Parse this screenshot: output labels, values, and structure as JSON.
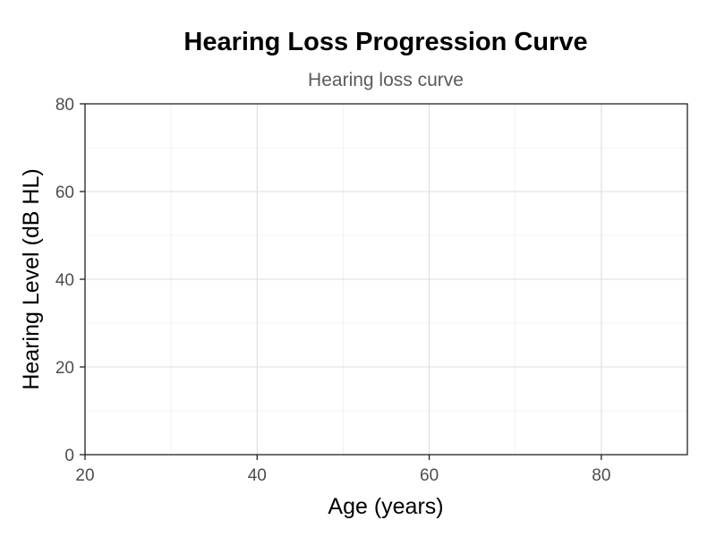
{
  "chart_data": {
    "type": "line",
    "title": "Hearing Loss Progression Curve",
    "subtitle": "Hearing loss curve",
    "xlabel": "Age (years)",
    "ylabel": "Hearing Level (dB HL)",
    "xlim": [
      20,
      90
    ],
    "ylim": [
      0,
      80
    ],
    "x_ticks": [
      20,
      40,
      60,
      80
    ],
    "x_tick_labels": [
      "20",
      "40",
      "60",
      "80"
    ],
    "y_ticks": [
      0,
      20,
      40,
      60,
      80
    ],
    "y_tick_labels": [
      "0",
      "20",
      "40",
      "60",
      "80"
    ],
    "x_minor_ticks": [
      30,
      50,
      70,
      90
    ],
    "y_minor_ticks": [
      10,
      30,
      50,
      70
    ],
    "grid": true,
    "series": []
  }
}
